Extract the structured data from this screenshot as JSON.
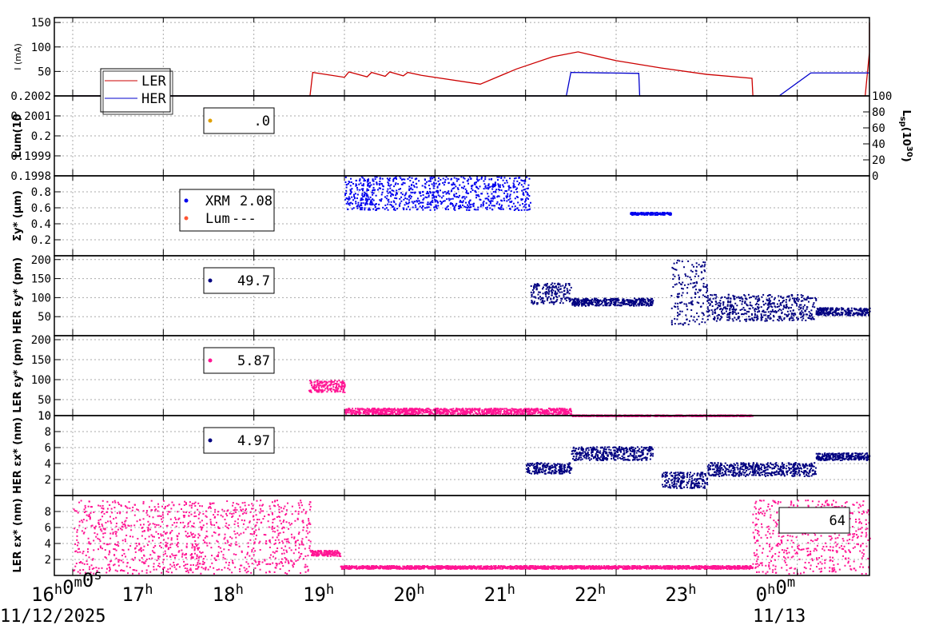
{
  "chart_data": [
    {
      "type": "line",
      "ylabel": "I (mA)",
      "yticks": [
        "150",
        "100",
        "50"
      ],
      "ylim": [
        0,
        160
      ],
      "series": [
        {
          "name": "LER",
          "color": "#cc0000",
          "points": [
            [
              16.0,
              0
            ],
            [
              18.62,
              0
            ],
            [
              18.65,
              48
            ],
            [
              19.0,
              38
            ],
            [
              19.05,
              49
            ],
            [
              19.25,
              39
            ],
            [
              19.3,
              48
            ],
            [
              19.45,
              40
            ],
            [
              19.5,
              49
            ],
            [
              19.65,
              41
            ],
            [
              19.7,
              48
            ],
            [
              19.85,
              42
            ],
            [
              20.5,
              24
            ],
            [
              20.9,
              55
            ],
            [
              21.3,
              80
            ],
            [
              21.58,
              90
            ],
            [
              22.0,
              72
            ],
            [
              22.5,
              57
            ],
            [
              23.0,
              44
            ],
            [
              23.5,
              36
            ],
            [
              23.51,
              0
            ],
            [
              24.75,
              0
            ],
            [
              24.8,
              90
            ],
            [
              24.85,
              150
            ],
            [
              25.0,
              150
            ]
          ]
        },
        {
          "name": "HER",
          "color": "#0000cc",
          "points": [
            [
              16.0,
              0
            ],
            [
              21.45,
              0
            ],
            [
              21.5,
              48
            ],
            [
              22.25,
              46
            ],
            [
              22.26,
              0
            ],
            [
              23.8,
              0
            ],
            [
              24.15,
              47
            ],
            [
              25.0,
              47
            ]
          ]
        }
      ]
    },
    {
      "type": "scatter",
      "ylabel": "Lum(10",
      "yticks": [
        "0.2002",
        "0.2001",
        "0.2",
        "0.1999",
        "0.1998"
      ],
      "ylim": [
        0.1998,
        0.2002
      ],
      "y2label": "L",
      "y2ticks": [
        "100",
        "80",
        "60",
        "40",
        "20",
        "0"
      ],
      "y2lim": [
        0,
        100
      ],
      "legend": [
        {
          "value": ".0",
          "color": "#e0a000"
        }
      ]
    },
    {
      "type": "scatter",
      "ylabel": "Σy* (μm)",
      "yticks": [
        "0.8",
        "0.6",
        "0.4",
        "0.2"
      ],
      "ylim": [
        0,
        1.0
      ],
      "series": [
        {
          "name": "XRM",
          "color": "#0000ee",
          "clusters": [
            {
              "x": [
                19.0,
                21.05
              ],
              "y": [
                0.58,
                1.0
              ]
            },
            {
              "x": [
                22.15,
                22.6
              ],
              "y": [
                0.52,
                0.55
              ]
            }
          ]
        }
      ],
      "legend": [
        {
          "name": "XRM",
          "value": "2.08",
          "color": "#0000ee"
        },
        {
          "name": "Lum",
          "value": "---",
          "color": "#ff5533"
        }
      ]
    },
    {
      "type": "scatter",
      "ylabel": "HER εy* (pm)",
      "yticks": [
        "200",
        "150",
        "100",
        "50"
      ],
      "ylim": [
        0,
        210
      ],
      "series": [
        {
          "color": "#000080",
          "clusters": [
            {
              "x": [
                21.05,
                21.5
              ],
              "y": [
                85,
                140
              ]
            },
            {
              "x": [
                21.5,
                22.4
              ],
              "y": [
                80,
                100
              ]
            },
            {
              "x": [
                22.6,
                23.0
              ],
              "y": [
                30,
                200
              ]
            },
            {
              "x": [
                23.0,
                24.2
              ],
              "y": [
                40,
                110
              ]
            },
            {
              "x": [
                24.2,
                24.8
              ],
              "y": [
                55,
                75
              ]
            },
            {
              "x": [
                24.8,
                25.0
              ],
              "y": [
                40,
                55
              ]
            }
          ]
        }
      ],
      "legend": [
        {
          "value": "49.7",
          "color": "#000080"
        }
      ]
    },
    {
      "type": "scatter",
      "ylabel": "LER εy* (pm)",
      "yticks": [
        "200",
        "150",
        "100",
        "50",
        "10"
      ],
      "ylim": [
        10,
        210
      ],
      "series": [
        {
          "color": "#ff1493",
          "clusters": [
            {
              "x": [
                18.6,
                19.0
              ],
              "y": [
                70,
                100
              ]
            },
            {
              "x": [
                19.0,
                21.5
              ],
              "y": [
                15,
                30
              ]
            },
            {
              "x": [
                21.5,
                23.5
              ],
              "y": [
                10,
                13
              ]
            },
            {
              "x": [
                24.85,
                25.0
              ],
              "y": [
                10,
                13
              ]
            }
          ]
        }
      ],
      "legend": [
        {
          "value": "5.87",
          "color": "#ff1493"
        }
      ]
    },
    {
      "type": "scatter",
      "ylabel": "HER εx* (nm)",
      "yticks": [
        "10",
        "8",
        "6",
        "4",
        "2"
      ],
      "ylim": [
        0,
        10
      ],
      "series": [
        {
          "color": "#000080",
          "clusters": [
            {
              "x": [
                21.0,
                21.5
              ],
              "y": [
                2.8,
                4.2
              ]
            },
            {
              "x": [
                21.5,
                22.4
              ],
              "y": [
                4.5,
                6.2
              ]
            },
            {
              "x": [
                22.5,
                23.0
              ],
              "y": [
                1.0,
                3.0
              ]
            },
            {
              "x": [
                23.0,
                24.2
              ],
              "y": [
                2.5,
                4.2
              ]
            },
            {
              "x": [
                24.2,
                25.0
              ],
              "y": [
                4.5,
                5.4
              ]
            }
          ]
        }
      ],
      "legend": [
        {
          "value": "4.97",
          "color": "#000080"
        }
      ]
    },
    {
      "type": "scatter",
      "ylabel": "LER εx* (nm)",
      "yticks": [
        "8",
        "6",
        "4",
        "2"
      ],
      "ylim": [
        0,
        10
      ],
      "series": [
        {
          "color": "#ff1493",
          "clusters": [
            {
              "x": [
                16.0,
                18.62
              ],
              "y": [
                0.3,
                9.5
              ]
            },
            {
              "x": [
                18.62,
                18.95
              ],
              "y": [
                2.5,
                3.2
              ]
            },
            {
              "x": [
                18.95,
                23.5
              ],
              "y": [
                0.9,
                1.3
              ]
            },
            {
              "x": [
                23.5,
                24.8
              ],
              "y": [
                0.3,
                9.5
              ]
            },
            {
              "x": [
                24.8,
                25.0
              ],
              "y": [
                0.4,
                0.8
              ]
            }
          ]
        }
      ],
      "legend": [
        {
          "value": "64",
          "color": "#ff1493"
        }
      ]
    }
  ],
  "x_axis": {
    "xlim": [
      16,
      25
    ],
    "ticks": [
      "16h0m0s",
      "17h",
      "18h",
      "19h",
      "20h",
      "21h",
      "22h",
      "23h",
      "0h0m"
    ],
    "date_start": "11/12/2025",
    "date_end": "11/13"
  },
  "legend_main": [
    {
      "name": "LER",
      "color": "#cc0000"
    },
    {
      "name": "HER",
      "color": "#0000cc"
    }
  ]
}
